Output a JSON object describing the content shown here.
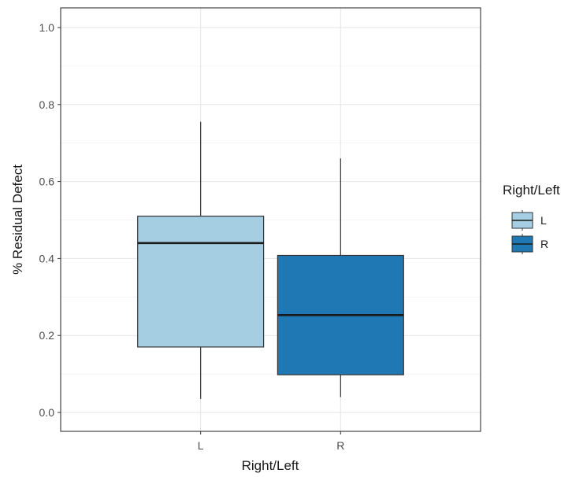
{
  "chart_data": {
    "type": "boxplot",
    "xlabel": "Right/Left",
    "ylabel": "% Residual Defect",
    "ylim": [
      -0.04,
      1.04
    ],
    "y_ticks": [
      "0.0",
      "0.2",
      "0.4",
      "0.6",
      "0.8",
      "1.0"
    ],
    "grid": true,
    "categories": [
      "L",
      "R"
    ],
    "boxes": [
      {
        "category": "L",
        "whisker_low": 0.035,
        "q1": 0.17,
        "median": 0.44,
        "q3": 0.51,
        "whisker_high": 0.755,
        "color": "#a6cee3"
      },
      {
        "category": "R",
        "whisker_low": 0.04,
        "q1": 0.098,
        "median": 0.253,
        "q3": 0.408,
        "whisker_high": 0.66,
        "color": "#1f78b4"
      }
    ],
    "legend": {
      "title": "Right/Left",
      "placement": "right",
      "entries": [
        {
          "label": "L",
          "color": "#a6cee3"
        },
        {
          "label": "R",
          "color": "#1f78b4"
        }
      ]
    }
  }
}
